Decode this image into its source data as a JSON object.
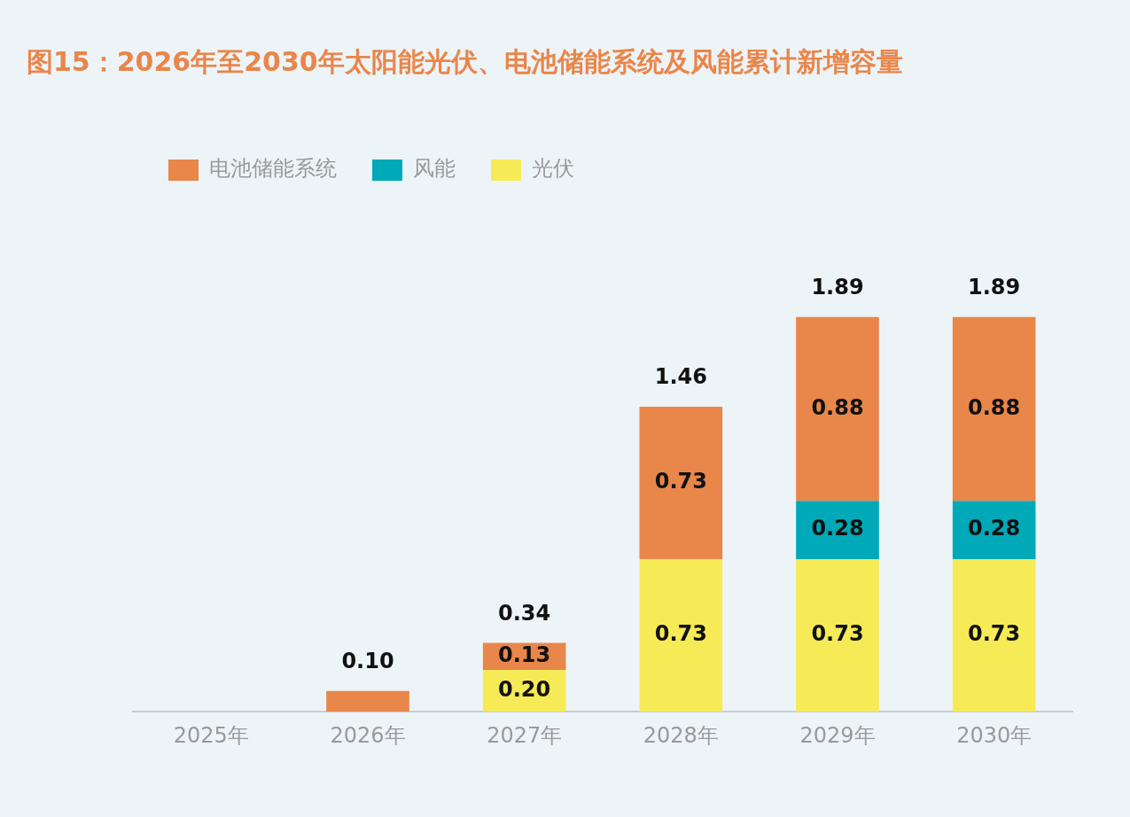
{
  "chart_data": {
    "type": "bar",
    "title": "图15：2026年至2030年太阳能光伏、电池储能系统及风能累计新增容量",
    "categories": [
      "2025年",
      "2026年",
      "2027年",
      "2028年",
      "2029年",
      "2030年"
    ],
    "stacked": true,
    "series": [
      {
        "name": "光伏",
        "color": "#f6ea56",
        "values": [
          null,
          null,
          0.2,
          0.73,
          0.73,
          0.73
        ],
        "value_labels": [
          null,
          null,
          "0.20",
          "0.73",
          "0.73",
          "0.73"
        ]
      },
      {
        "name": "风能",
        "color": "#00a9b8",
        "values": [
          null,
          null,
          null,
          null,
          0.28,
          0.28
        ],
        "value_labels": [
          null,
          null,
          null,
          null,
          "0.28",
          "0.28"
        ]
      },
      {
        "name": "电池储能系统",
        "color": "#e9864a",
        "values": [
          null,
          0.1,
          0.13,
          0.73,
          0.88,
          0.88
        ],
        "value_labels": [
          null,
          null,
          "0.13",
          "0.73",
          "0.88",
          "0.88"
        ]
      }
    ],
    "totals": [
      null,
      "0.10",
      "0.34",
      "1.46",
      "1.89",
      "1.89"
    ],
    "legend": "top left",
    "grid": false,
    "tick_labels": "x"
  }
}
